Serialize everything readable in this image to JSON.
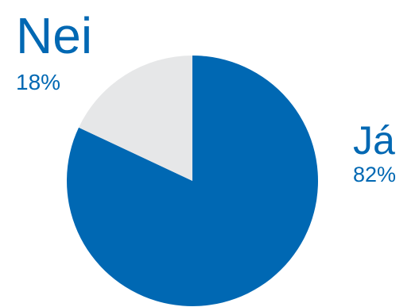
{
  "chart_data": {
    "type": "pie",
    "categories": [
      "Já",
      "Nei"
    ],
    "values": [
      82,
      18
    ],
    "value_labels": [
      "82%",
      "18%"
    ],
    "colors": [
      "#0068b3",
      "#e6e7e8"
    ]
  }
}
